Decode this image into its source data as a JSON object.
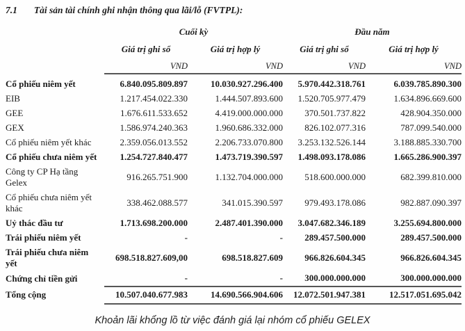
{
  "document": {
    "section_number": "7.1",
    "title": "Tài sản tài chính ghi nhận thông qua lãi/lỗ (FVTPL):",
    "caption": "Khoản lãi khổng lồ từ việc đánh giá lại nhóm cổ phiếu GELEX"
  },
  "table": {
    "column_groups": [
      "Cuối kỳ",
      "Đầu năm"
    ],
    "sub_headers": [
      "Giá trị ghi sổ",
      "Giá trị hợp lý",
      "Giá trị ghi sổ",
      "Giá trị hợp lý"
    ],
    "unit": "VND",
    "rows": [
      {
        "label": "Cổ phiếu niêm yết",
        "bold": true,
        "total": false,
        "values": [
          "6.840.095.809.897",
          "10.030.927.296.400",
          "5.970.442.318.761",
          "6.039.785.890.300"
        ]
      },
      {
        "label": "EIB",
        "bold": false,
        "total": false,
        "values": [
          "1.217.454.022.330",
          "1.444.507.893.600",
          "1.520.705.977.479",
          "1.634.896.669.600"
        ]
      },
      {
        "label": "GEE",
        "bold": false,
        "total": false,
        "values": [
          "1.676.611.533.652",
          "4.419.000.000.000",
          "370.501.737.822",
          "428.904.350.000"
        ]
      },
      {
        "label": "GEX",
        "bold": false,
        "total": false,
        "values": [
          "1.586.974.240.363",
          "1.960.686.332.000",
          "826.102.077.316",
          "787.099.540.000"
        ]
      },
      {
        "label": "Cổ phiếu niêm yết khác",
        "bold": false,
        "total": false,
        "values": [
          "2.359.056.013.552",
          "2.206.733.070.800",
          "3.253.132.526.144",
          "3.188.885.330.700"
        ]
      },
      {
        "label": "Cổ phiếu chưa niêm yết",
        "bold": true,
        "total": false,
        "values": [
          "1.254.727.840.477",
          "1.473.719.390.597",
          "1.498.093.178.086",
          "1.665.286.900.397"
        ]
      },
      {
        "label": "Công ty CP Hạ tầng Gelex",
        "bold": false,
        "total": false,
        "values": [
          "916.265.751.900",
          "1.132.704.000.000",
          "518.600.000.000",
          "682.399.810.000"
        ]
      },
      {
        "label": "Cổ phiếu chưa niêm yết khác",
        "bold": false,
        "total": false,
        "values": [
          "338.462.088.577",
          "341.015.390.597",
          "979.493.178.086",
          "982.887.090.397"
        ]
      },
      {
        "label": "Uỷ thác đầu tư",
        "bold": true,
        "total": false,
        "values": [
          "1.713.698.200.000",
          "2.487.401.390.000",
          "3.047.682.346.189",
          "3.255.694.800.000"
        ]
      },
      {
        "label": "Trái phiếu niêm yết",
        "bold": true,
        "total": false,
        "values": [
          "-",
          "-",
          "289.457.500.000",
          "289.457.500.000"
        ]
      },
      {
        "label": "Trái phiếu chưa niêm yết",
        "bold": true,
        "total": false,
        "values": [
          "698.518.827.609,00",
          "698.518.827.609",
          "966.826.604.345",
          "966.826.604.345"
        ]
      },
      {
        "label": "Chứng chỉ tiền gửi",
        "bold": true,
        "total": false,
        "values": [
          "-",
          "-",
          "300.000.000.000",
          "300.000.000.000"
        ]
      },
      {
        "label": "Tổng cộng",
        "bold": true,
        "total": true,
        "values": [
          "10.507.040.677.983",
          "14.690.566.904.606",
          "12.072.501.947.381",
          "12.517.051.695.042"
        ]
      }
    ]
  }
}
